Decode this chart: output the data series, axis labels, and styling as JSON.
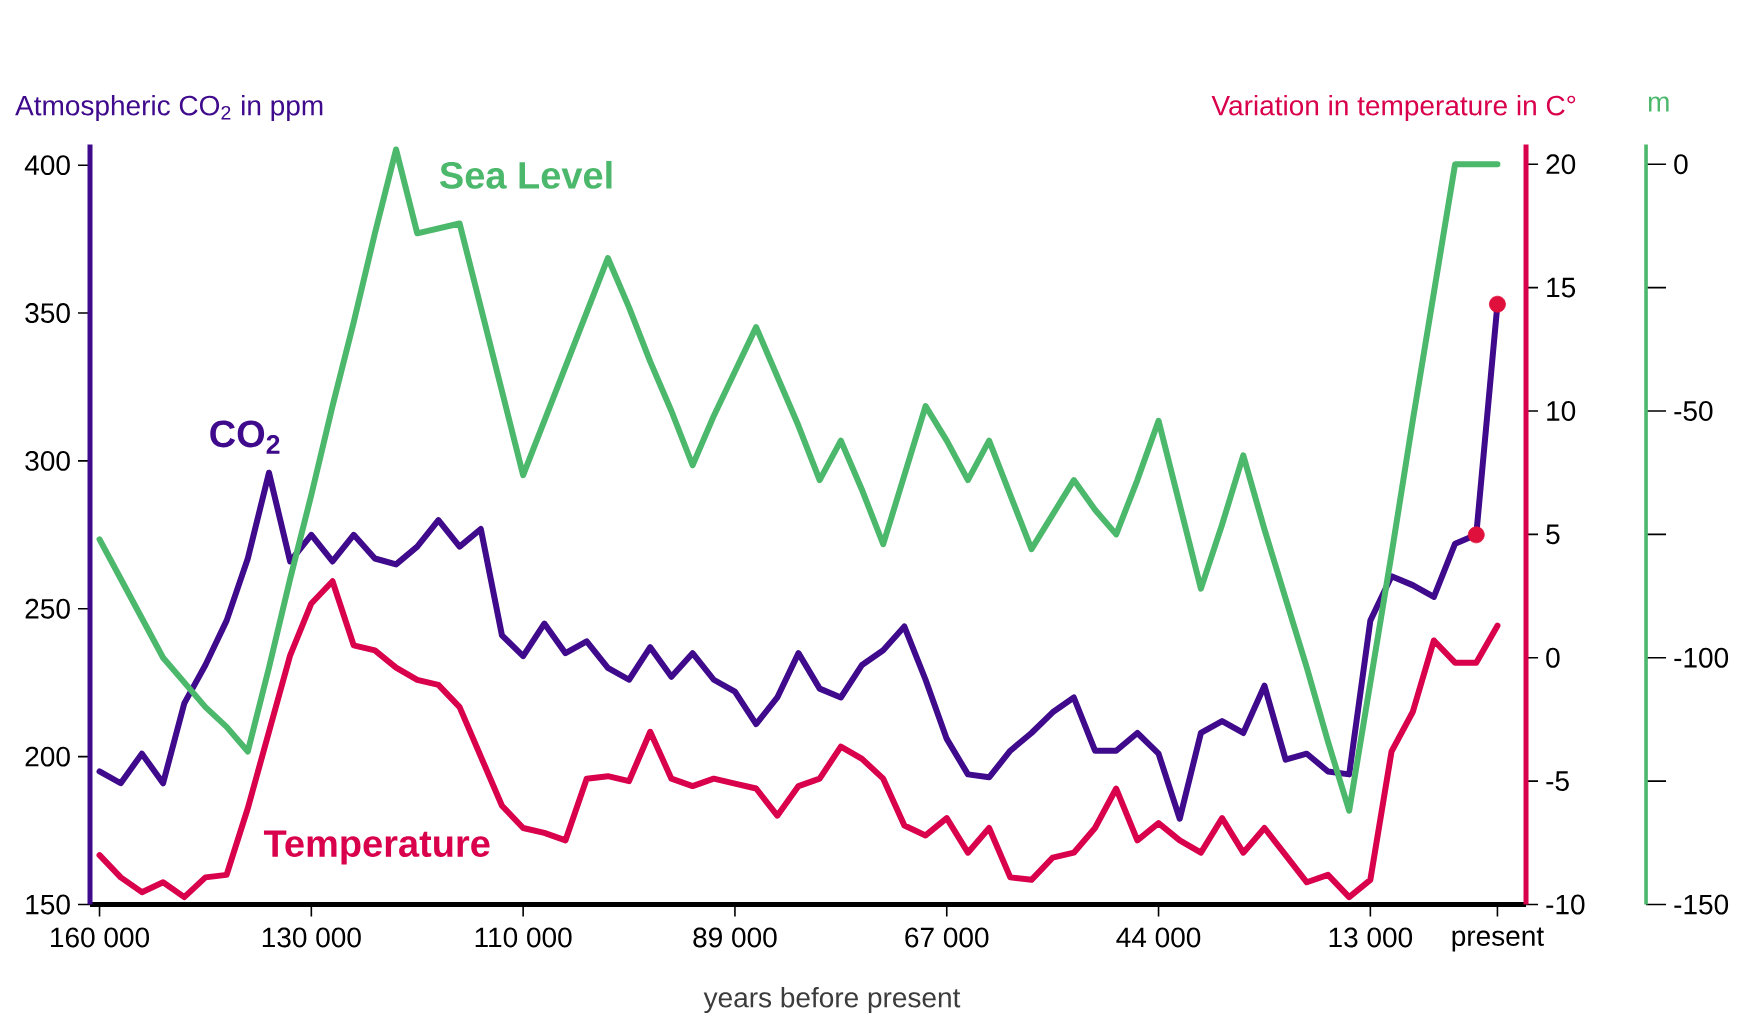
{
  "chart_data": {
    "type": "line",
    "xlabel": "years before present",
    "ylabel": "Atmospheric CO$_{2}$ in ppm",
    "y2label": "Variation in temperature in C°",
    "y3label": "m",
    "categories": [
      "160 000",
      null,
      null,
      null,
      null,
      null,
      null,
      null,
      null,
      null,
      "130 000",
      null,
      null,
      null,
      null,
      null,
      null,
      null,
      null,
      null,
      "110 000",
      null,
      null,
      null,
      null,
      null,
      null,
      null,
      null,
      null,
      "89 000",
      null,
      null,
      null,
      null,
      null,
      null,
      null,
      null,
      null,
      "67 000",
      null,
      null,
      null,
      null,
      null,
      null,
      null,
      null,
      null,
      "44 000",
      null,
      null,
      null,
      null,
      null,
      null,
      null,
      null,
      null,
      "13 000",
      null,
      null,
      null,
      null,
      null,
      "present"
    ],
    "ylim": [
      150,
      407
    ],
    "yticks": [
      150,
      200,
      250,
      300,
      350,
      400
    ],
    "y2lim": [
      -10,
      20.8
    ],
    "y2ticks": [
      -10,
      -5,
      0,
      5,
      10,
      15,
      20
    ],
    "y3lim": [
      -150,
      4
    ],
    "y3ticks": [
      -150,
      {
        "value": -125,
        "label": null
      },
      -100,
      {
        "value": -75,
        "label": null
      },
      -50,
      {
        "value": -25,
        "label": null
      },
      0
    ],
    "series": [
      {
        "name": "CO$_{2}$",
        "color": "#3f0a8c",
        "values": [
          195,
          191,
          201,
          191,
          218,
          231,
          246,
          267,
          296,
          266,
          275,
          266,
          275,
          267,
          265,
          271,
          280,
          271,
          277,
          241,
          234,
          245,
          235,
          239,
          230,
          226,
          237,
          227,
          235,
          226,
          222,
          211,
          220,
          235,
          223,
          220,
          231,
          236,
          244,
          226,
          206,
          194,
          193,
          202,
          208,
          215,
          220,
          202,
          202,
          208,
          201,
          179,
          208,
          212,
          208,
          224,
          199,
          201,
          195,
          194,
          246,
          261,
          258,
          254,
          272,
          275,
          353
        ]
      },
      {
        "name": "Temperature",
        "color": "#d9004c",
        "axis": "y2",
        "values": [
          -8.0,
          -8.9,
          -9.5,
          -9.1,
          -9.7,
          -8.9,
          -8.8,
          -6.1,
          -3.0,
          0.1,
          2.2,
          3.1,
          0.5,
          0.3,
          -0.4,
          -0.9,
          -1.1,
          -2.0,
          -4.0,
          -6.0,
          -6.9,
          -7.1,
          -7.4,
          -4.9,
          -4.8,
          -5.0,
          -3.0,
          -4.9,
          -5.2,
          -4.9,
          -5.1,
          -5.3,
          -6.4,
          -5.2,
          -4.9,
          -3.6,
          -4.1,
          -4.9,
          -6.8,
          -7.2,
          -6.5,
          -7.9,
          -6.9,
          -8.9,
          -9.0,
          -8.1,
          -7.9,
          -6.9,
          -5.3,
          -7.4,
          -6.7,
          -7.4,
          -7.9,
          -6.5,
          -7.9,
          -6.9,
          -8.0,
          -9.1,
          -8.8,
          -9.7,
          -9.0,
          -3.8,
          -2.2,
          0.7,
          -0.2,
          -0.2,
          1.3
        ]
      },
      {
        "name": "Sea Level",
        "color": "#4cb86c",
        "axis": "y3",
        "values": [
          -76,
          -84,
          -92,
          -100,
          -105,
          -110,
          -114,
          -119,
          -102,
          -84,
          -67,
          -49,
          -32,
          -14,
          3,
          -14,
          -13,
          -12,
          -29,
          -46,
          -63,
          -52,
          -41,
          -30,
          -19,
          -29,
          -40,
          -50,
          -61,
          -51,
          -42,
          -33,
          -43,
          -53,
          -64,
          -56,
          -66,
          -77,
          -63,
          -49,
          -56,
          -64,
          -56,
          -67,
          -78,
          -71,
          -64,
          -70,
          -75,
          -64,
          -52,
          -69,
          -86,
          -73,
          -59,
          -74,
          -88,
          -102,
          -117,
          -131,
          -105,
          -79,
          -52,
          -26,
          0,
          0,
          0
        ]
      },
      {
        "type": "scatter",
        "marker": "circle",
        "color": "#e0103c",
        "values": [
          null,
          null,
          null,
          null,
          null,
          null,
          null,
          null,
          null,
          null,
          null,
          null,
          null,
          null,
          null,
          null,
          null,
          null,
          null,
          null,
          null,
          null,
          null,
          null,
          null,
          null,
          null,
          null,
          null,
          null,
          null,
          null,
          null,
          null,
          null,
          null,
          null,
          null,
          null,
          null,
          null,
          null,
          null,
          null,
          null,
          null,
          null,
          null,
          null,
          null,
          null,
          null,
          null,
          null,
          null,
          null,
          null,
          null,
          null,
          null,
          null,
          null,
          null,
          null,
          null,
          275,
          353
        ]
      }
    ]
  }
}
